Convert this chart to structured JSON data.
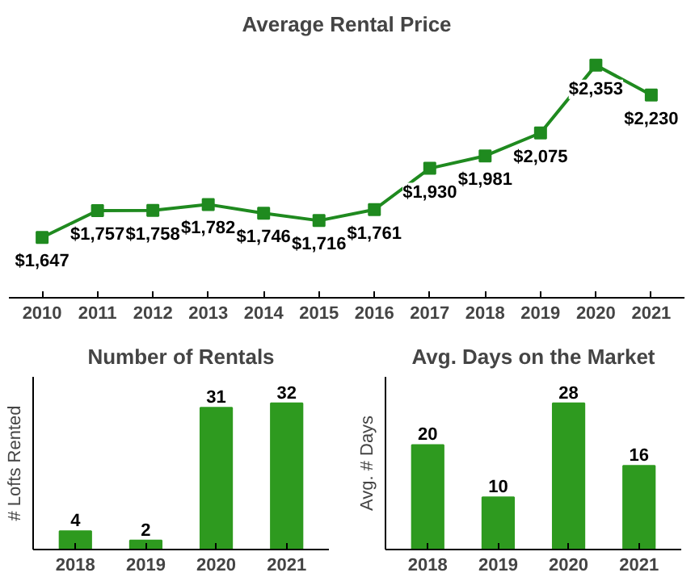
{
  "chart_data": [
    {
      "type": "line",
      "title": "Average Rental Price",
      "categories": [
        "2010",
        "2011",
        "2012",
        "2013",
        "2014",
        "2015",
        "2016",
        "2017",
        "2018",
        "2019",
        "2020",
        "2021"
      ],
      "series": [
        {
          "color": "#1f8a1f",
          "values": [
            1647,
            1757,
            1758,
            1782,
            1746,
            1716,
            1761,
            1930,
            1981,
            2075,
            2353,
            2230
          ],
          "value_labels": [
            "$1,647",
            "$1,757",
            "$1,758",
            "$1,782",
            "$1,746",
            "$1,716",
            "$1,761",
            "$1,930",
            "$1,981",
            "$2,075",
            "$2,353",
            "$2,230"
          ]
        }
      ],
      "marker": "square",
      "tick_labels": "x",
      "grid": false
    },
    {
      "type": "bar",
      "title": "Number of Rentals",
      "ylabel": "# Lofts Rented",
      "categories": [
        "2018",
        "2019",
        "2020",
        "2021"
      ],
      "series": [
        {
          "color": "#2e9a1f",
          "values": [
            4,
            2,
            31,
            32
          ]
        }
      ],
      "data_labels": true,
      "tick_labels": "x",
      "grid": false
    },
    {
      "type": "bar",
      "title": "Avg. Days on the Market",
      "ylabel": "Avg. # Days",
      "categories": [
        "2018",
        "2019",
        "2020",
        "2021"
      ],
      "series": [
        {
          "color": "#2e9a1f",
          "values": [
            20,
            10,
            28,
            16
          ]
        }
      ],
      "data_labels": true,
      "tick_labels": "x",
      "grid": false
    }
  ]
}
